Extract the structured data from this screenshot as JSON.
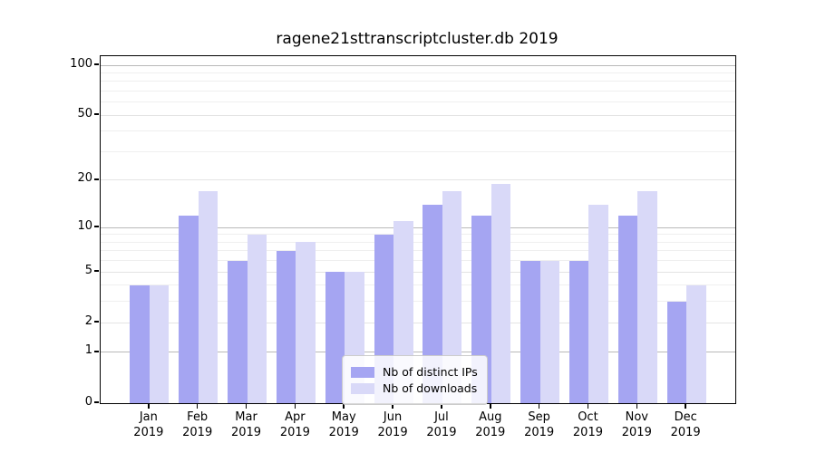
{
  "title": "ragene21sttranscriptcluster.db 2019",
  "chart_data": {
    "type": "bar",
    "title": "ragene21sttranscriptcluster.db 2019",
    "categories": [
      "Jan",
      "Feb",
      "Mar",
      "Apr",
      "May",
      "Jun",
      "Jul",
      "Aug",
      "Sep",
      "Oct",
      "Nov",
      "Dec"
    ],
    "year_label": "2019",
    "series": [
      {
        "name": "Nb of distinct IPs",
        "color": "#a5a5f2",
        "values": [
          4,
          12,
          6,
          7,
          5,
          9,
          14,
          12,
          6,
          6,
          12,
          3
        ]
      },
      {
        "name": "Nb of downloads",
        "color": "#d9d9f8",
        "values": [
          4,
          17,
          9,
          8,
          5,
          11,
          17,
          19,
          6,
          14,
          17,
          4
        ]
      }
    ],
    "yscale": "log1p",
    "ylim": [
      0,
      112
    ],
    "y_ticks": [
      0,
      1,
      2,
      5,
      10,
      20,
      50,
      100
    ],
    "y_decade_gridlines": [
      1,
      10,
      100
    ],
    "y_minor_gridlines": [
      3,
      4,
      6,
      7,
      8,
      9,
      30,
      40,
      60,
      70,
      80,
      90
    ],
    "grid": true,
    "legend_position": "lower center"
  },
  "colors": {
    "background": "#ffffff",
    "axis": "#000000",
    "grid_decade": "#b9b9b9",
    "grid_labeled": "#e4e4e4",
    "grid_minor": "#efefef",
    "bar_ips": "#a5a5f2",
    "bar_downloads": "#d9d9f8"
  }
}
